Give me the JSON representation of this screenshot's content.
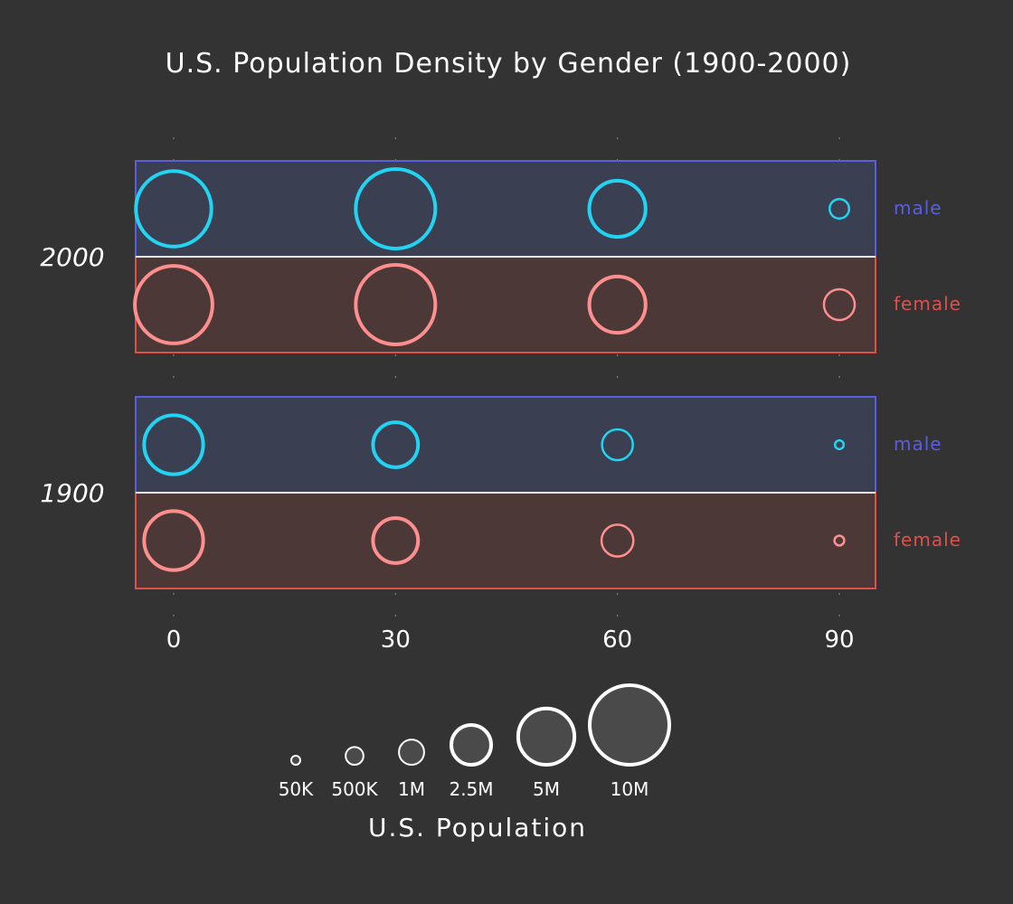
{
  "chart_data": {
    "type": "bubble",
    "title": "U.S. Population Density by Gender (1900-2000)",
    "colors": {
      "background": "#333333",
      "male_fill": "#3b3f52",
      "male_stroke": "#5a5fe0",
      "female_fill": "#4d3838",
      "female_stroke": "#e0504b",
      "male_bubble": "#22d3f2",
      "female_bubble": "#ff8f8f",
      "text": "#ffffff"
    },
    "x": [
      0,
      30,
      60,
      90
    ],
    "x_tick_labels": [
      "0",
      "30",
      "60",
      "90"
    ],
    "groups": [
      {
        "year": "2000",
        "rows": [
          {
            "label": "male",
            "gender": "male",
            "values": [
              9000000,
              10000000,
              5000000,
              600000
            ]
          },
          {
            "label": "female",
            "gender": "female",
            "values": [
              9500000,
              10000000,
              5000000,
              1500000
            ]
          }
        ]
      },
      {
        "year": "1900",
        "rows": [
          {
            "label": "male",
            "gender": "male",
            "values": [
              5500000,
              3200000,
              1500000,
              120000
            ]
          },
          {
            "label": "female",
            "gender": "female",
            "values": [
              5500000,
              3200000,
              1600000,
              150000
            ]
          }
        ]
      }
    ],
    "size_legend": {
      "title": "U.S. Population",
      "values": [
        50000,
        500000,
        1000000,
        2500000,
        5000000,
        10000000
      ],
      "labels": [
        "50K",
        "500K",
        "1M",
        "2.5M",
        "5M",
        "10M"
      ]
    }
  }
}
